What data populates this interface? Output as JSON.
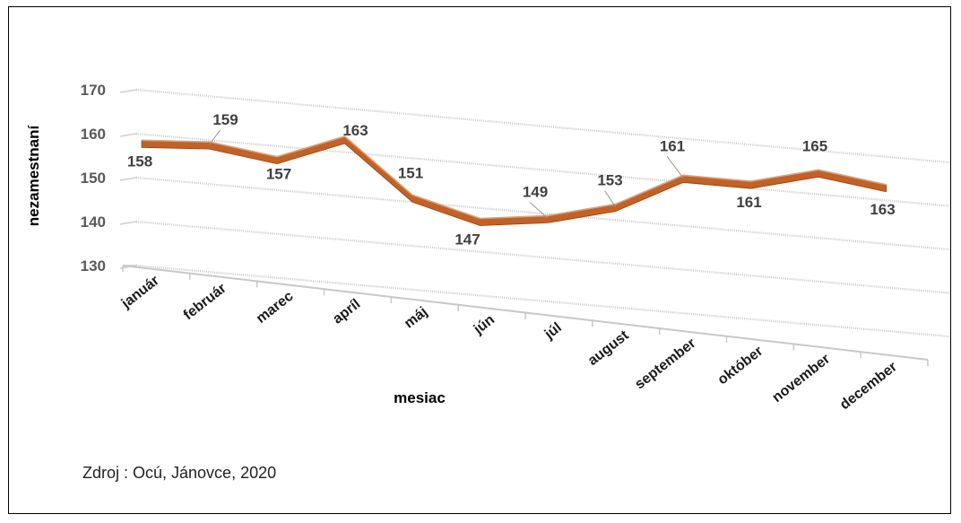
{
  "chart_data": {
    "type": "line",
    "categories": [
      "január",
      "február",
      "marec",
      "apríl",
      "máj",
      "jún",
      "júl",
      "august",
      "september",
      "október",
      "november",
      "december"
    ],
    "series": [
      {
        "values": [
          158,
          159,
          157,
          163,
          151,
          147,
          149,
          153,
          161,
          161,
          165,
          163
        ],
        "color": "#c0622a"
      }
    ],
    "xlabel": "mesiac",
    "ylabel": "nezamestnaní",
    "ylim": [
      130,
      170
    ],
    "yticks": [
      130,
      140,
      150,
      160,
      170
    ],
    "grid": true,
    "style": "3d-line"
  },
  "source": "Zdroj : Ocú, Jánovce, 2020"
}
